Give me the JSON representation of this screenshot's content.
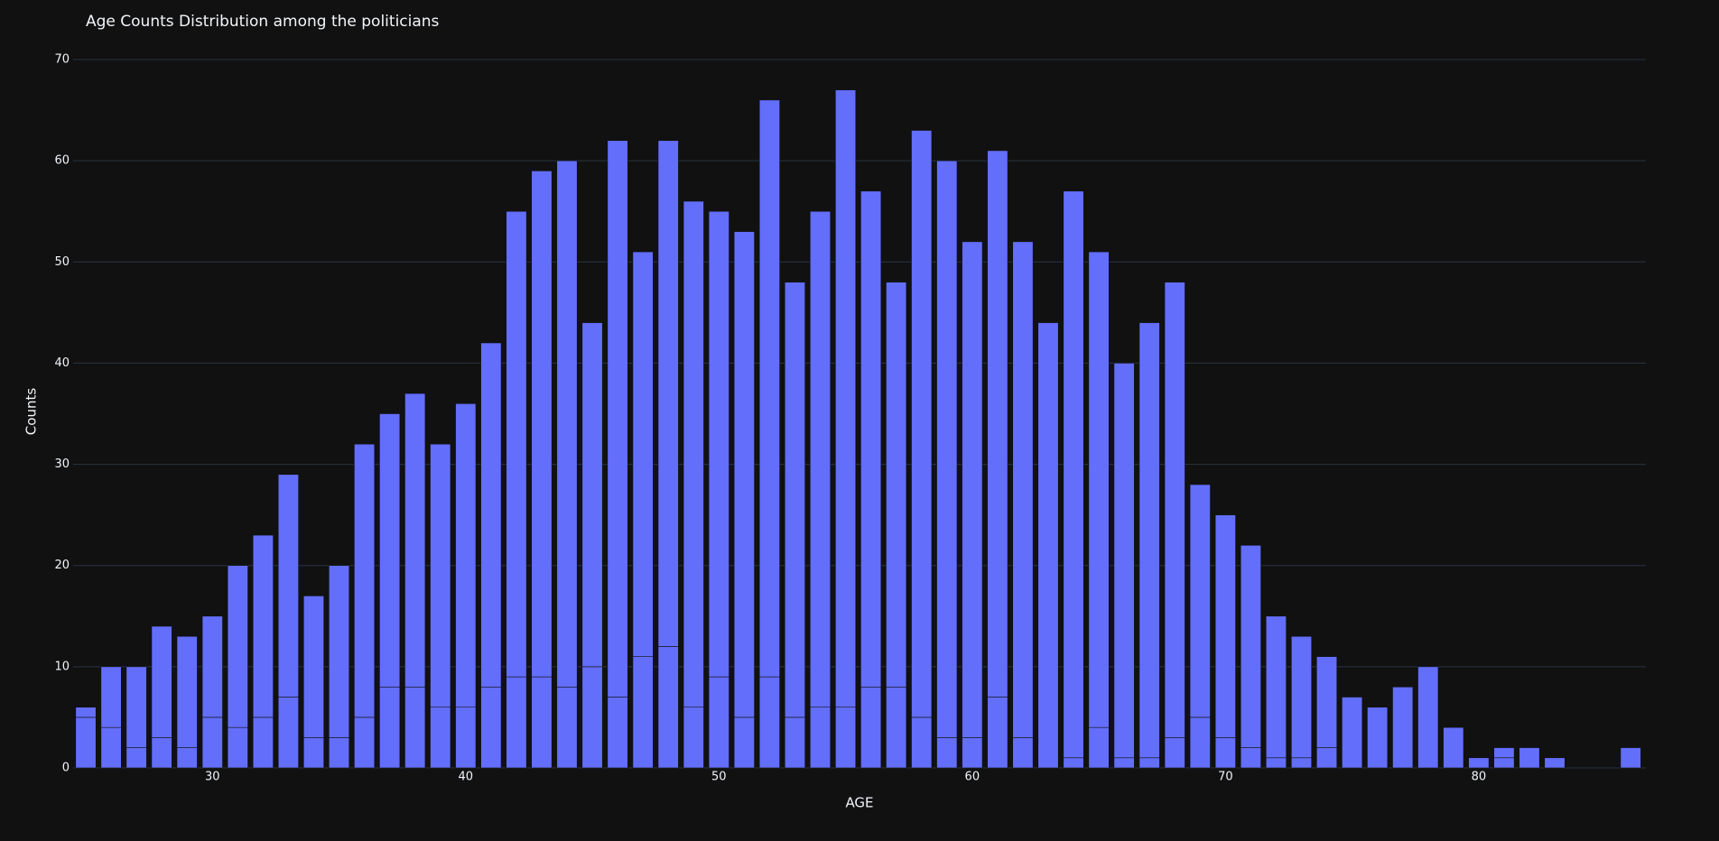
{
  "chart_data": {
    "type": "stacked-bar",
    "title": "Age Counts Distribution among the politicians",
    "x_label": "AGE",
    "y_label": "Counts",
    "x": [
      25,
      26,
      27,
      28,
      29,
      30,
      31,
      32,
      33,
      34,
      35,
      36,
      37,
      38,
      39,
      40,
      41,
      42,
      43,
      44,
      45,
      46,
      47,
      48,
      49,
      50,
      51,
      52,
      53,
      54,
      55,
      56,
      57,
      58,
      59,
      60,
      61,
      62,
      63,
      64,
      65,
      66,
      67,
      68,
      69,
      70,
      71,
      72,
      73,
      74,
      75,
      76,
      77,
      78,
      79,
      80,
      81,
      82,
      83,
      84,
      85,
      86
    ],
    "series": [
      {
        "color": "#636efa",
        "values": [
          5,
          4,
          2,
          3,
          2,
          5,
          4,
          5,
          7,
          3,
          3,
          5,
          8,
          8,
          6,
          6,
          8,
          9,
          9,
          8,
          10,
          7,
          11,
          12,
          6,
          9,
          5,
          9,
          5,
          6,
          6,
          8,
          8,
          5,
          3,
          3,
          7,
          3,
          0,
          1,
          4,
          1,
          1,
          3,
          5,
          3,
          2,
          1,
          1,
          2,
          0,
          0,
          0,
          0,
          0,
          0,
          1,
          0,
          0,
          0,
          0,
          0
        ]
      },
      {
        "color": "#636efa",
        "values": [
          1,
          6,
          8,
          11,
          11,
          10,
          16,
          18,
          22,
          14,
          17,
          27,
          27,
          29,
          26,
          30,
          34,
          46,
          50,
          52,
          34,
          55,
          40,
          50,
          50,
          46,
          48,
          57,
          43,
          49,
          61,
          49,
          40,
          58,
          57,
          49,
          54,
          49,
          44,
          56,
          47,
          39,
          43,
          45,
          23,
          22,
          20,
          14,
          12,
          9,
          7,
          6,
          8,
          10,
          4,
          1,
          1,
          2,
          1,
          0,
          0,
          2
        ]
      }
    ],
    "xlim": [
      24.5,
      86.6
    ],
    "xticks": [
      30,
      40,
      50,
      60,
      70,
      80
    ],
    "ylim": [
      0,
      70
    ],
    "yticks": [
      0,
      10,
      20,
      30,
      40,
      50,
      60,
      70
    ],
    "grid": true
  }
}
